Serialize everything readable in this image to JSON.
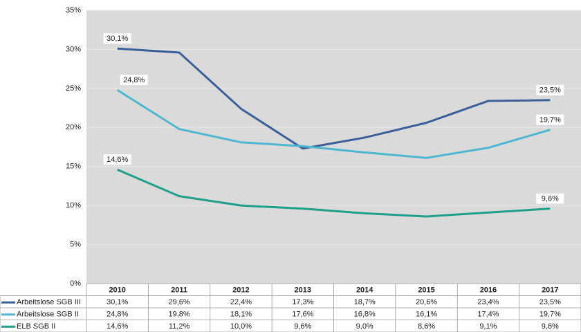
{
  "chart_data": {
    "type": "line",
    "categories": [
      "2010",
      "2011",
      "2012",
      "2013",
      "2014",
      "2015",
      "2016",
      "2017"
    ],
    "series": [
      {
        "name": "Arbeitslose SGB III",
        "color": "#3b5f98",
        "values": [
          30.1,
          29.6,
          22.4,
          17.3,
          18.7,
          20.6,
          23.4,
          23.5
        ],
        "value_labels": [
          "30,1%",
          "29,6%",
          "22,4%",
          "17,3%",
          "18,7%",
          "20,6%",
          "23,4%",
          "23,5%"
        ]
      },
      {
        "name": "Arbeitslose SGB II",
        "color": "#4fb6d0",
        "values": [
          24.8,
          19.8,
          18.1,
          17.6,
          16.8,
          16.1,
          17.4,
          19.7
        ],
        "value_labels": [
          "24,8%",
          "19,8%",
          "18,1%",
          "17,6%",
          "16,8%",
          "16,1%",
          "17,4%",
          "19,7%"
        ]
      },
      {
        "name": "ELB SGB II",
        "color": "#1f9e8a",
        "values": [
          14.6,
          11.2,
          10.0,
          9.6,
          9.0,
          8.6,
          9.1,
          9.6
        ],
        "value_labels": [
          "14,6%",
          "11,2%",
          "10,0%",
          "9,6%",
          "9,0%",
          "8,6%",
          "9,1%",
          "9,6%"
        ]
      }
    ],
    "ylim": [
      0,
      35
    ],
    "yticks": [
      {
        "value": 0,
        "label": "0%"
      },
      {
        "value": 5,
        "label": "5%"
      },
      {
        "value": 10,
        "label": "10%"
      },
      {
        "value": 15,
        "label": "15%"
      },
      {
        "value": 20,
        "label": "20%"
      },
      {
        "value": 25,
        "label": "25%"
      },
      {
        "value": 30,
        "label": "30%"
      },
      {
        "value": 35,
        "label": "35%"
      }
    ],
    "grid": true
  }
}
